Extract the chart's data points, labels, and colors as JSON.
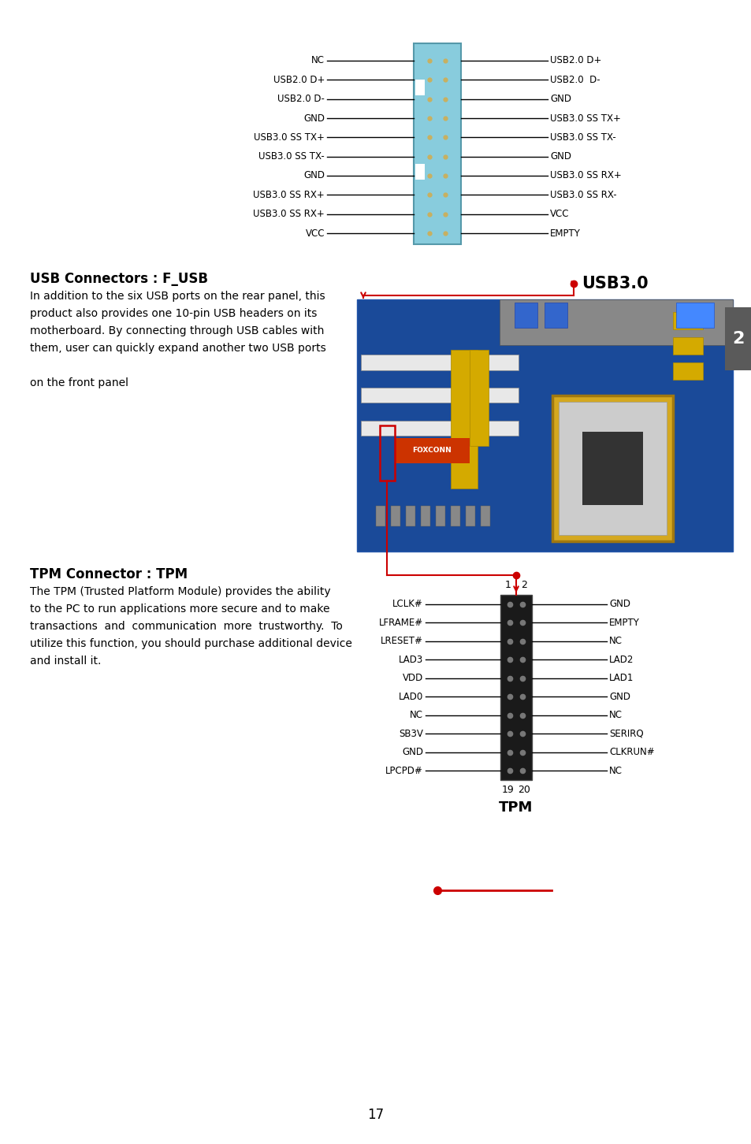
{
  "page_number": "17",
  "background_color": "#ffffff",
  "tab_color": "#5a5a5a",
  "tab_text": "2",
  "usb30_connector": {
    "left_labels": [
      "NC",
      "USB2.0 D+",
      "USB2.0 D-",
      "GND",
      "USB3.0 SS TX+",
      "USB3.0 SS TX-",
      "GND",
      "USB3.0 SS RX+",
      "USB3.0 SS RX+",
      "VCC"
    ],
    "right_labels": [
      "USB2.0 D+",
      "USB2.0  D-",
      "GND",
      "USB3.0 SS TX+",
      "USB3.0 SS TX-",
      "GND",
      "USB3.0 SS RX+",
      "USB3.0 SS RX-",
      "VCC",
      "EMPTY"
    ]
  },
  "usb_section": {
    "title": "USB Connectors : F_USB",
    "body_lines": [
      "In addition to the six USB ports on the rear panel, this",
      "product also provides one 10-pin USB headers on its",
      "motherboard. By connecting through USB cables with",
      "them, user can quickly expand another two USB ports",
      "",
      "on the front panel"
    ]
  },
  "tpm_section": {
    "title": "TPM Connector : TPM",
    "body_lines": [
      "The TPM (Trusted Platform Module) provides the ability",
      "to the PC to run applications more secure and to make",
      "transactions  and  communication  more  trustworthy.  To",
      "utilize this function, you should purchase additional device",
      "and install it."
    ],
    "left_labels": [
      "LCLK#",
      "LFRAME#",
      "LRESET#",
      "LAD3",
      "VDD",
      "LAD0",
      "NC",
      "SB3V",
      "GND",
      "LPCPD#"
    ],
    "right_labels": [
      "GND",
      "EMPTY",
      "NC",
      "LAD2",
      "LAD1",
      "GND",
      "NC",
      "SERIRQ",
      "CLKRUN#",
      "NC"
    ]
  },
  "red_color": "#cc0000"
}
